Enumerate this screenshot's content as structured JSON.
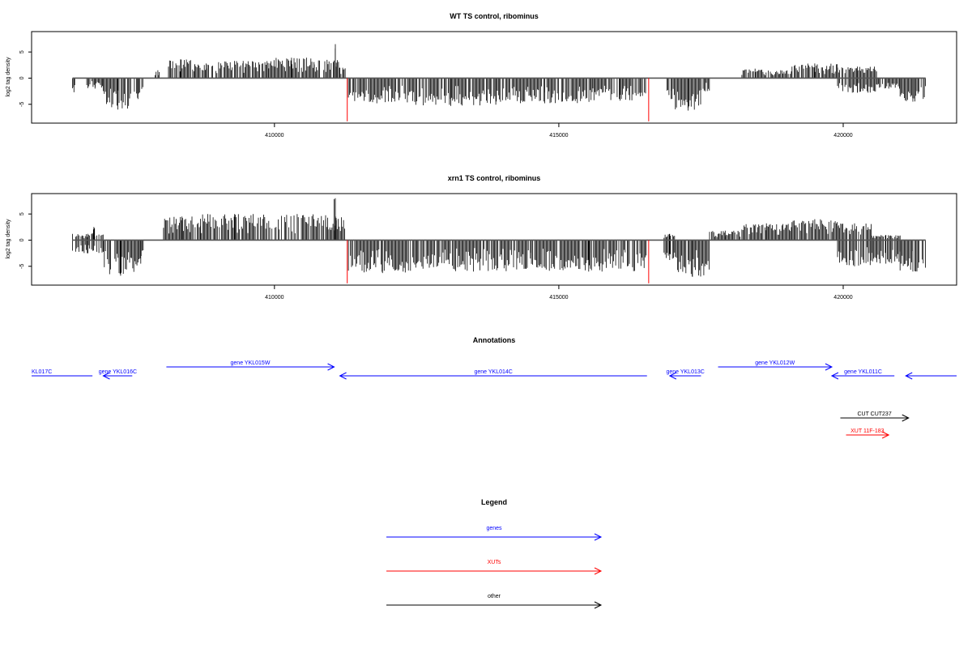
{
  "colors": {
    "density": "#000000",
    "boundary": "#ff0000",
    "gene": "#0000ff",
    "xut": "#ff0000",
    "other": "#000000"
  },
  "chart_data": [
    {
      "type": "bar",
      "title": "WT TS control, ribominus",
      "xlabel": "",
      "ylabel": "log2 tag density",
      "xlim": [
        405730,
        421994
      ],
      "ylim": [
        -8.6,
        8.9
      ],
      "xticks": [
        410000,
        415000,
        420000
      ],
      "xtick_labels": [
        "410000",
        "415000",
        "420000"
      ],
      "yticks": [
        -5,
        0,
        5
      ],
      "ytick_labels": [
        "-5",
        "0",
        "5"
      ],
      "grid": false,
      "baseline": {
        "x": [
          406450,
          421450
        ],
        "y": 0
      },
      "boundaries": [
        411280,
        416580
      ],
      "profile": [
        {
          "start": 406450,
          "end": 406500,
          "min": -2.7,
          "max": 0
        },
        {
          "start": 406700,
          "end": 406990,
          "min": -2.0,
          "max": 0
        },
        {
          "start": 406990,
          "end": 407500,
          "min": -6.0,
          "max": 0
        },
        {
          "start": 407500,
          "end": 407700,
          "min": -4.0,
          "max": 0
        },
        {
          "start": 407900,
          "end": 408000,
          "min": 0,
          "max": 1.5
        },
        {
          "start": 408100,
          "end": 408600,
          "min": 0,
          "max": 3.6
        },
        {
          "start": 408600,
          "end": 409000,
          "min": 0,
          "max": 2.8
        },
        {
          "start": 409000,
          "end": 409900,
          "min": 0,
          "max": 3.3
        },
        {
          "start": 409900,
          "end": 410700,
          "min": 0,
          "max": 3.9
        },
        {
          "start": 410700,
          "end": 411150,
          "min": 0,
          "max": 3.5
        },
        {
          "start": 411050,
          "end": 411090,
          "min": 0,
          "max": 6.5
        },
        {
          "start": 411150,
          "end": 411250,
          "min": 0,
          "max": 2.0
        },
        {
          "start": 411300,
          "end": 412300,
          "min": -4.8,
          "max": 0
        },
        {
          "start": 412300,
          "end": 413900,
          "min": -5.3,
          "max": 0
        },
        {
          "start": 413900,
          "end": 415600,
          "min": -4.8,
          "max": 0
        },
        {
          "start": 415600,
          "end": 416550,
          "min": -4.3,
          "max": 0
        },
        {
          "start": 416900,
          "end": 417050,
          "min": -4.0,
          "max": 0
        },
        {
          "start": 417050,
          "end": 417500,
          "min": -6.2,
          "max": 0
        },
        {
          "start": 417500,
          "end": 417650,
          "min": -2.5,
          "max": 0
        },
        {
          "start": 418200,
          "end": 418700,
          "min": 0,
          "max": 1.8
        },
        {
          "start": 418700,
          "end": 419100,
          "min": 0,
          "max": 1.5
        },
        {
          "start": 419100,
          "end": 419900,
          "min": 0,
          "max": 2.8
        },
        {
          "start": 419900,
          "end": 420600,
          "min": -2.8,
          "max": 2.2
        },
        {
          "start": 420600,
          "end": 421000,
          "min": -2.0,
          "max": 0
        },
        {
          "start": 421000,
          "end": 421450,
          "min": -4.5,
          "max": 0
        }
      ]
    },
    {
      "type": "bar",
      "title": "xrn1 TS control, ribominus",
      "xlabel": "",
      "ylabel": "log2 tag density",
      "xlim": [
        405730,
        421994
      ],
      "ylim": [
        -8.6,
        8.9
      ],
      "xticks": [
        410000,
        415000,
        420000
      ],
      "xtick_labels": [
        "410000",
        "415000",
        "420000"
      ],
      "yticks": [
        -5,
        0,
        5
      ],
      "ytick_labels": [
        "-5",
        "0",
        "5"
      ],
      "grid": false,
      "baseline": {
        "x": [
          406450,
          421450
        ],
        "y": 0
      },
      "boundaries": [
        411280,
        416580
      ],
      "profile": [
        {
          "start": 406450,
          "end": 406990,
          "min": -2.5,
          "max": 1.2
        },
        {
          "start": 406800,
          "end": 406850,
          "min": 0,
          "max": 2.5
        },
        {
          "start": 406990,
          "end": 407600,
          "min": -6.8,
          "max": 0
        },
        {
          "start": 407600,
          "end": 407700,
          "min": -4.5,
          "max": 0
        },
        {
          "start": 408050,
          "end": 408700,
          "min": 0,
          "max": 4.5
        },
        {
          "start": 408700,
          "end": 409900,
          "min": 0,
          "max": 5.0
        },
        {
          "start": 409900,
          "end": 410900,
          "min": 0,
          "max": 5.0
        },
        {
          "start": 410900,
          "end": 411250,
          "min": 0,
          "max": 4.5
        },
        {
          "start": 411050,
          "end": 411090,
          "min": 0,
          "max": 8.0
        },
        {
          "start": 411300,
          "end": 412500,
          "min": -6.3,
          "max": 0
        },
        {
          "start": 412500,
          "end": 414500,
          "min": -6.0,
          "max": 0
        },
        {
          "start": 414500,
          "end": 416550,
          "min": -6.0,
          "max": 0
        },
        {
          "start": 416850,
          "end": 417050,
          "min": -3.8,
          "max": 1.2
        },
        {
          "start": 417050,
          "end": 417650,
          "min": -7.0,
          "max": 0
        },
        {
          "start": 417650,
          "end": 418200,
          "min": 0,
          "max": 1.8
        },
        {
          "start": 418200,
          "end": 419100,
          "min": 0,
          "max": 3.2
        },
        {
          "start": 419100,
          "end": 419900,
          "min": 0,
          "max": 4.0
        },
        {
          "start": 419900,
          "end": 420500,
          "min": -5.0,
          "max": 3.2
        },
        {
          "start": 420500,
          "end": 421000,
          "min": -4.5,
          "max": 1.0
        },
        {
          "start": 421000,
          "end": 421450,
          "min": -6.0,
          "max": 0
        }
      ]
    }
  ],
  "annotations": {
    "title": "Annotations",
    "items": [
      {
        "label": "KL017C",
        "kind": "gene",
        "start": 405730,
        "end": 406800,
        "dir": "none",
        "row": 1
      },
      {
        "label": "gene YKL016C",
        "kind": "gene",
        "start": 406990,
        "end": 407500,
        "dir": "left",
        "row": 1
      },
      {
        "label": "gene YKL015W",
        "kind": "gene",
        "start": 408100,
        "end": 411050,
        "dir": "right",
        "row": 0
      },
      {
        "label": "gene YKL014C",
        "kind": "gene",
        "start": 411150,
        "end": 416550,
        "dir": "left",
        "row": 1
      },
      {
        "label": "gene YKL013C",
        "kind": "gene",
        "start": 416950,
        "end": 417500,
        "dir": "left",
        "row": 1
      },
      {
        "label": "gene YKL012W",
        "kind": "gene",
        "start": 417800,
        "end": 419800,
        "dir": "right",
        "row": 0
      },
      {
        "label": "gene YKL011C",
        "kind": "gene",
        "start": 419800,
        "end": 420900,
        "dir": "left",
        "row": 1
      },
      {
        "label": "",
        "kind": "gene",
        "start": 421100,
        "end": 421994,
        "dir": "left",
        "row": 1
      },
      {
        "label": "CUT CUT237",
        "kind": "other",
        "start": 419950,
        "end": 421150,
        "dir": "right",
        "row": 2
      },
      {
        "label": "XUT 11F-183",
        "kind": "xut",
        "start": 420050,
        "end": 420800,
        "dir": "right",
        "row": 3
      }
    ]
  },
  "legend": {
    "title": "Legend",
    "items": [
      {
        "label": "genes",
        "kind": "gene"
      },
      {
        "label": "XUTs",
        "kind": "xut"
      },
      {
        "label": "other",
        "kind": "other"
      }
    ]
  }
}
